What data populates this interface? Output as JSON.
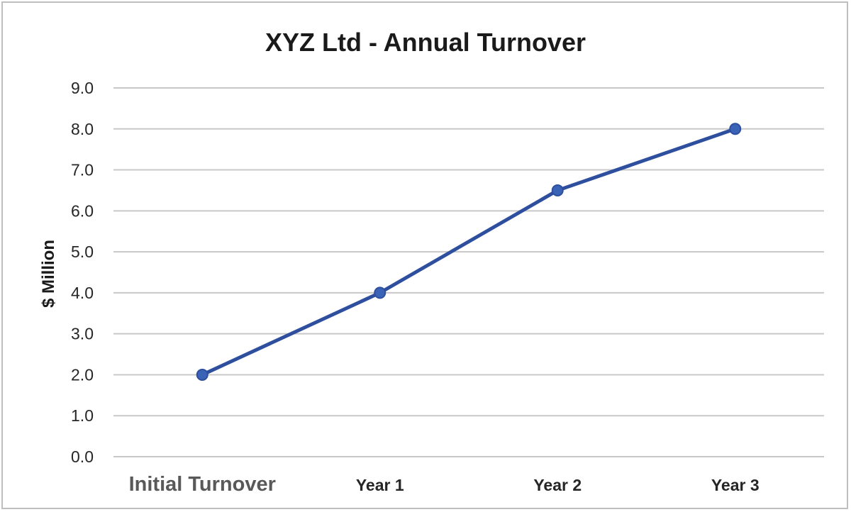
{
  "chart_data": {
    "type": "line",
    "title": "XYZ Ltd - Annual Turnover",
    "xlabel": "",
    "ylabel": "$ Million",
    "categories": [
      "Initial Turnover",
      "Year 1",
      "Year 2",
      "Year 3"
    ],
    "series": [
      {
        "values": [
          2.0,
          4.0,
          6.5,
          8.0
        ]
      }
    ],
    "ylim": [
      0,
      9
    ],
    "yticks": [
      "0.0",
      "1.0",
      "2.0",
      "3.0",
      "4.0",
      "5.0",
      "6.0",
      "7.0",
      "8.0",
      "9.0"
    ],
    "grid": true,
    "legend": "none",
    "line_color": "#2e4f9e",
    "marker_fill": "#3a63b8"
  }
}
